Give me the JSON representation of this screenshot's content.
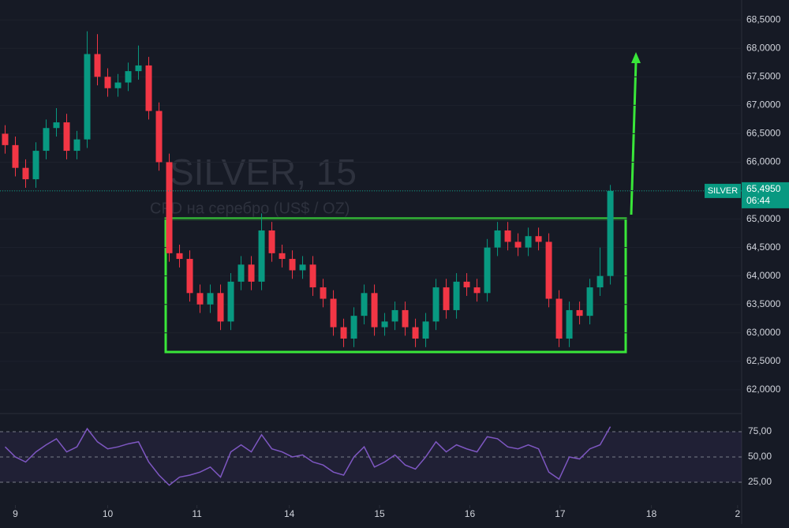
{
  "chart_data": [
    {
      "type": "candlestick",
      "title": "SILVER, 15",
      "subtitle": "CFD на серебро (US$ / OZ)",
      "symbol": "SILVER",
      "up_color": "#089981",
      "down_color": "#f23645",
      "xlim": [
        -0.5,
        71.8
      ],
      "ylim": [
        61.61,
        68.85
      ],
      "xticks": [
        {
          "value": 1,
          "label": "9"
        },
        {
          "value": 10,
          "label": "10"
        },
        {
          "value": 18.7,
          "label": "11"
        },
        {
          "value": 27.7,
          "label": "14"
        },
        {
          "value": 36.5,
          "label": "15"
        },
        {
          "value": 45.3,
          "label": "16"
        },
        {
          "value": 54.1,
          "label": "17"
        },
        {
          "value": 63,
          "label": "18"
        },
        {
          "value": 71.4,
          "label": "2"
        }
      ],
      "yticks": [
        {
          "value": 62.0,
          "label": "62,0000"
        },
        {
          "value": 62.5,
          "label": "62,5000"
        },
        {
          "value": 63.0,
          "label": "63,0000"
        },
        {
          "value": 63.5,
          "label": "63,5000"
        },
        {
          "value": 64.0,
          "label": "64,0000"
        },
        {
          "value": 64.5,
          "label": "64,5000"
        },
        {
          "value": 65.0,
          "label": "65,0000"
        },
        {
          "value": 65.5,
          "label": "65,5000"
        },
        {
          "value": 66.0,
          "label": "66,0000"
        },
        {
          "value": 66.5,
          "label": "66,5000"
        },
        {
          "value": 67.0,
          "label": "67,0000"
        },
        {
          "value": 67.5,
          "label": "67,5000"
        },
        {
          "value": 68.0,
          "label": "68,0000"
        },
        {
          "value": 68.5,
          "label": "68,5000"
        }
      ],
      "last_price": {
        "value": 65.495,
        "label": "65,4950"
      },
      "countdown": "06:44",
      "open": [
        66.5,
        66.3,
        65.9,
        65.7,
        66.2,
        66.6,
        66.7,
        66.2,
        66.4,
        67.9,
        67.5,
        67.3,
        67.4,
        67.6,
        67.7,
        66.9,
        66.0,
        64.4,
        64.3,
        63.7,
        63.5,
        63.7,
        63.2,
        63.9,
        64.2,
        63.9,
        64.8,
        64.4,
        64.3,
        64.1,
        64.2,
        63.8,
        63.6,
        63.1,
        62.9,
        63.3,
        63.7,
        63.1,
        63.2,
        63.4,
        63.1,
        62.9,
        63.2,
        63.8,
        63.4,
        63.9,
        63.8,
        63.7,
        64.5,
        64.8,
        64.6,
        64.5,
        64.7,
        64.6,
        63.6,
        62.9,
        63.4,
        63.3,
        63.8,
        64.0
      ],
      "high": [
        66.65,
        66.45,
        66.05,
        66.35,
        66.75,
        66.95,
        66.85,
        66.55,
        68.3,
        68.25,
        67.65,
        67.55,
        67.75,
        68.05,
        67.85,
        67.05,
        66.15,
        64.55,
        64.45,
        63.85,
        63.85,
        63.85,
        64.05,
        64.35,
        64.35,
        65.1,
        64.95,
        64.55,
        64.45,
        64.35,
        64.35,
        63.95,
        63.75,
        63.25,
        63.45,
        63.85,
        63.85,
        63.35,
        63.55,
        63.55,
        63.25,
        63.35,
        63.95,
        63.95,
        64.05,
        64.05,
        63.95,
        64.65,
        64.95,
        64.95,
        64.75,
        64.85,
        64.85,
        64.75,
        63.75,
        63.55,
        63.55,
        63.95,
        64.5,
        65.6
      ],
      "low": [
        66.15,
        65.75,
        65.55,
        65.55,
        66.05,
        66.45,
        66.05,
        66.05,
        66.25,
        67.35,
        67.15,
        67.15,
        67.25,
        67.45,
        66.75,
        65.85,
        64.25,
        64.15,
        63.55,
        63.35,
        63.35,
        63.05,
        63.05,
        63.75,
        63.75,
        63.75,
        64.25,
        64.15,
        63.95,
        63.95,
        63.65,
        63.45,
        62.95,
        62.75,
        62.75,
        63.15,
        62.95,
        62.95,
        63.05,
        62.95,
        62.75,
        62.75,
        63.05,
        63.25,
        63.25,
        63.65,
        63.55,
        63.55,
        64.35,
        64.45,
        64.35,
        64.35,
        64.45,
        63.45,
        62.75,
        62.75,
        63.15,
        63.15,
        63.65,
        63.85
      ],
      "close": [
        66.3,
        65.9,
        65.7,
        66.2,
        66.6,
        66.7,
        66.2,
        66.4,
        67.9,
        67.5,
        67.3,
        67.4,
        67.6,
        67.7,
        66.9,
        66.0,
        64.4,
        64.3,
        63.7,
        63.5,
        63.7,
        63.2,
        63.9,
        64.2,
        63.9,
        64.8,
        64.4,
        64.3,
        64.1,
        64.2,
        63.8,
        63.6,
        63.1,
        62.9,
        63.3,
        63.7,
        63.1,
        63.2,
        63.4,
        63.1,
        62.9,
        63.2,
        63.8,
        63.4,
        63.9,
        63.8,
        63.7,
        64.5,
        64.8,
        64.6,
        64.5,
        64.7,
        64.6,
        63.6,
        62.9,
        63.4,
        63.3,
        63.8,
        64.0,
        65.495
      ]
    },
    {
      "type": "line",
      "color": "#7e57c2",
      "xlim": [
        -0.5,
        71.8
      ],
      "ylim": [
        7,
        91.4
      ],
      "yticks": [
        {
          "value": 25,
          "label": "25,00"
        },
        {
          "value": 50,
          "label": "50,00"
        },
        {
          "value": 75,
          "label": "75,00"
        }
      ],
      "values": [
        60,
        50,
        45,
        55,
        62,
        68,
        55,
        60,
        78,
        65,
        58,
        60,
        63,
        65,
        45,
        32,
        22,
        30,
        32,
        35,
        40,
        30,
        55,
        62,
        55,
        72,
        58,
        55,
        50,
        52,
        45,
        42,
        35,
        32,
        50,
        60,
        40,
        45,
        52,
        42,
        38,
        50,
        65,
        55,
        62,
        58,
        55,
        70,
        68,
        60,
        58,
        62,
        58,
        35,
        28,
        50,
        48,
        58,
        62,
        80
      ]
    }
  ]
}
